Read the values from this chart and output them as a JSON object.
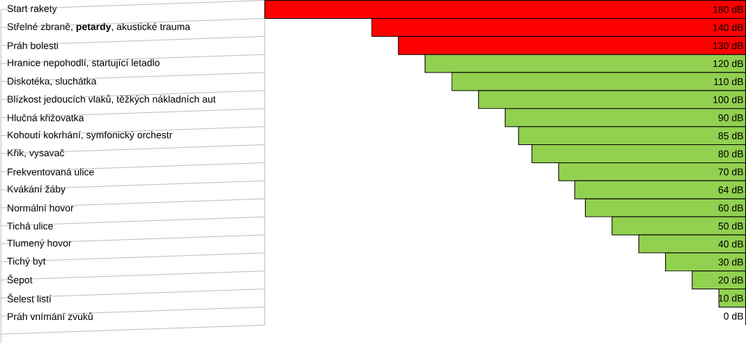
{
  "chart_data": {
    "type": "bar",
    "orientation": "horizontal",
    "categories": [
      "Start rakety",
      "Střelné zbraně, **petardy**, akustické trauma",
      "Práh bolesti",
      "Hranice nepohodlí, startující letadlo",
      "Diskotéka, sluchátka",
      "Blízkost jedoucích vlaků, těžkých nákladních aut",
      "Hlučná křižovatka",
      "Kohoutí kokrhání, symfonický orchestr",
      "Křik, vysavač",
      "Frekventovaná ulice",
      "Kvákání žáby",
      "Normální hovor",
      "Tichá ulice",
      "Tlumený hovor",
      "Tichý byt",
      "Šepot",
      "Šelest listí",
      "Práh vnímání zvuků"
    ],
    "values": [
      180,
      140,
      130,
      120,
      110,
      100,
      90,
      85,
      80,
      70,
      64,
      60,
      50,
      40,
      30,
      20,
      10,
      0
    ],
    "colors": [
      "#ff0000",
      "#ff0000",
      "#ff0000",
      "#92d050",
      "#92d050",
      "#92d050",
      "#92d050",
      "#92d050",
      "#92d050",
      "#92d050",
      "#92d050",
      "#92d050",
      "#92d050",
      "#92d050",
      "#92d050",
      "#92d050",
      "#92d050",
      "#92d050"
    ],
    "value_labels": [
      "180 dB",
      "140 dB",
      "130 dB",
      "120 dB",
      "110 dB",
      "100 dB",
      "90 dB",
      "85 dB",
      "80 dB",
      "70 dB",
      "64 dB",
      "60 dB",
      "50 dB",
      "40 dB",
      "30 dB",
      "20 dB",
      "10 dB",
      "0 dB"
    ],
    "xlim": [
      180,
      0
    ]
  }
}
